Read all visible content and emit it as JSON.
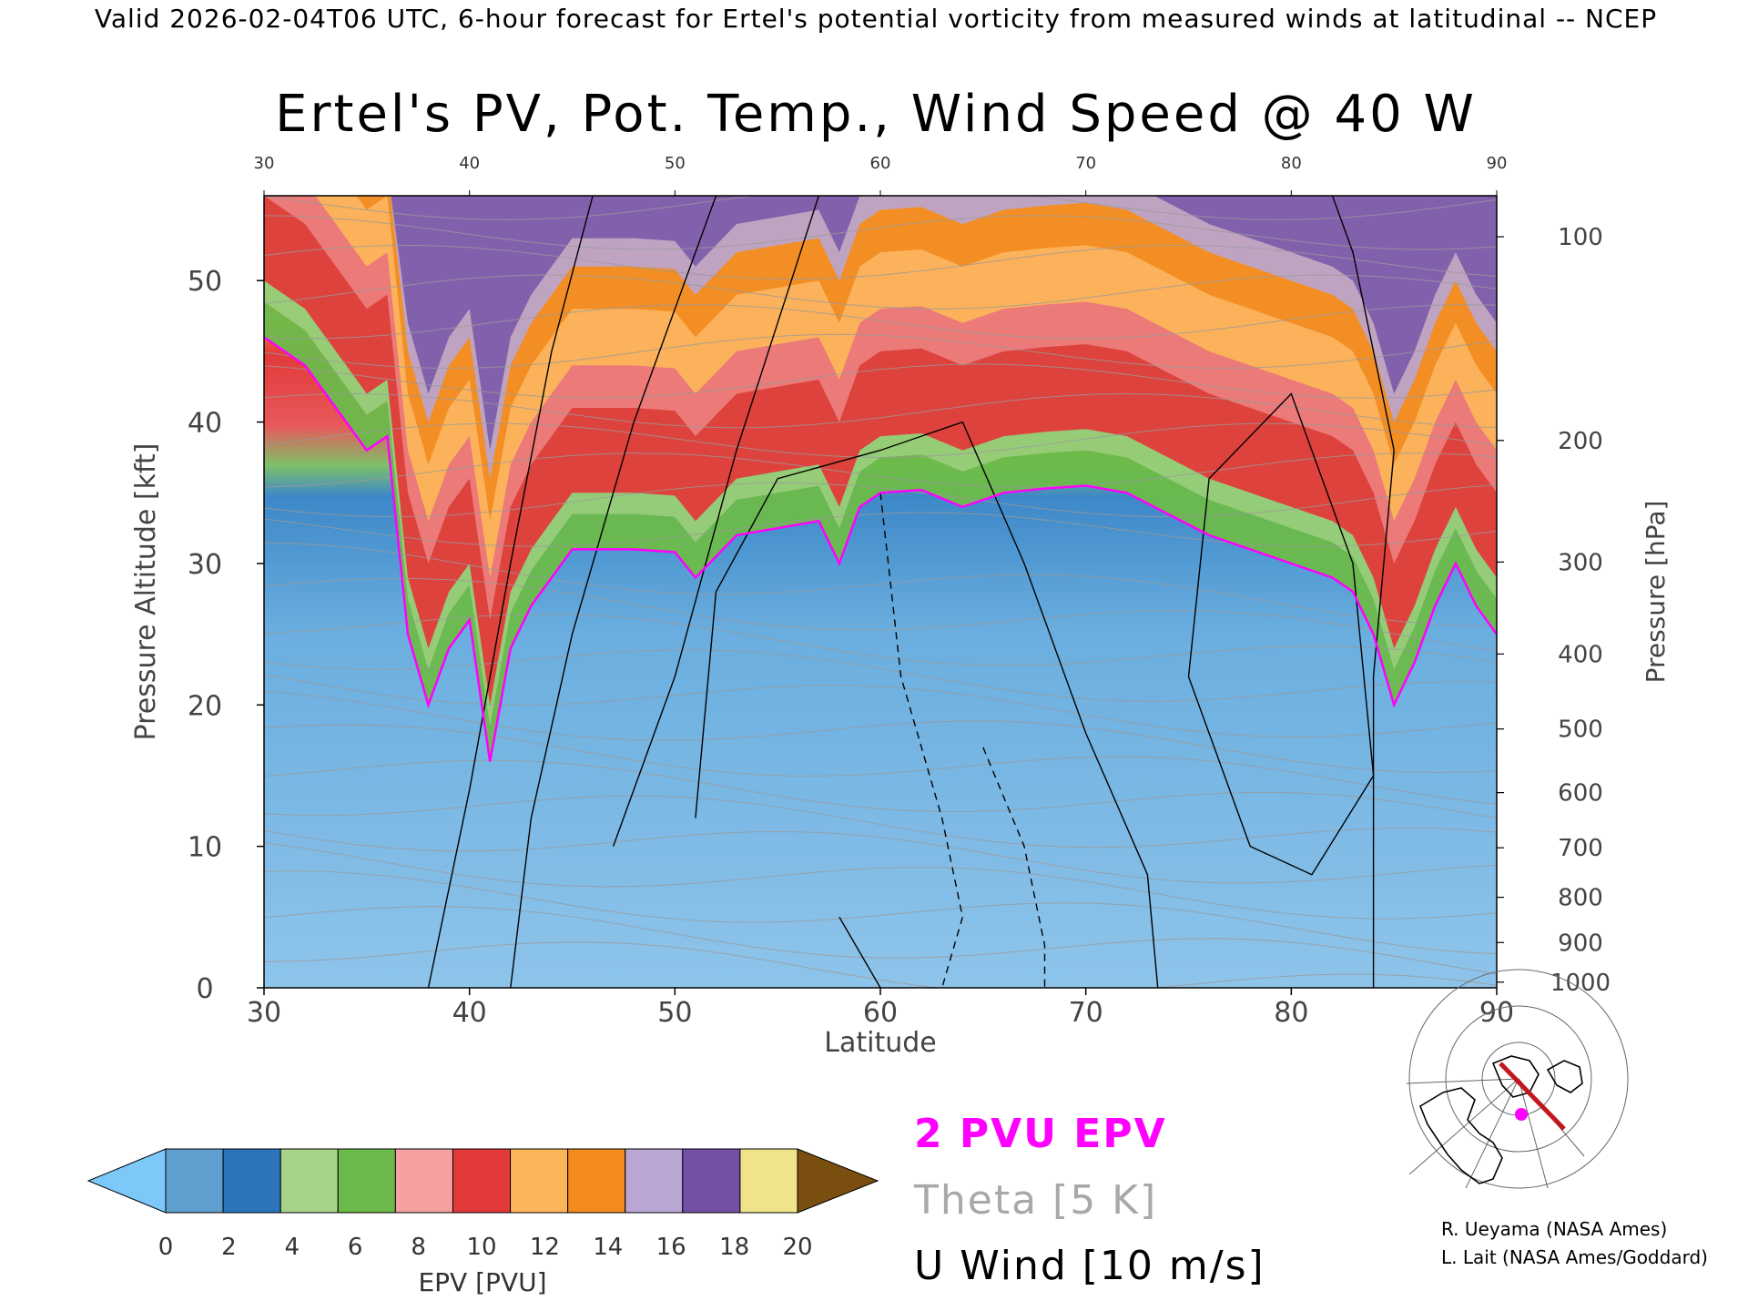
{
  "header": {
    "valid_line": "Valid 2026-02-04T06 UTC, 6-hour forecast for Ertel's potential vorticity from measured winds at latitudinal -- NCEP"
  },
  "chart_data": {
    "type": "heatmap",
    "title": "Ertel's PV, Pot. Temp., Wind Speed @ 40 W",
    "xlabel": "Latitude",
    "ylabel": "Pressure Altitude [kft]",
    "y2label": "Pressure [hPa]",
    "xlim": [
      30,
      90
    ],
    "ylim": [
      0,
      56
    ],
    "x_ticks": [
      "30",
      "40",
      "50",
      "60",
      "70",
      "80",
      "90"
    ],
    "x_top_ticks": [
      "30",
      "40",
      "50",
      "60",
      "70",
      "80",
      "90"
    ],
    "y_ticks": [
      "0",
      "10",
      "20",
      "30",
      "40",
      "50"
    ],
    "pressure_ticks": [
      {
        "label": "100",
        "kft": 53.1
      },
      {
        "label": "200",
        "kft": 38.7
      },
      {
        "label": "300",
        "kft": 30.1
      },
      {
        "label": "400",
        "kft": 23.6
      },
      {
        "label": "500",
        "kft": 18.3
      },
      {
        "label": "600",
        "kft": 13.8
      },
      {
        "label": "700",
        "kft": 9.9
      },
      {
        "label": "800",
        "kft": 6.4
      },
      {
        "label": "900",
        "kft": 3.2
      },
      {
        "label": "1000",
        "kft": 0.4
      }
    ],
    "tropopause_2pvu_kft": [
      [
        30,
        46
      ],
      [
        32,
        44
      ],
      [
        34,
        40
      ],
      [
        35,
        38
      ],
      [
        36,
        39
      ],
      [
        37,
        25
      ],
      [
        38,
        20
      ],
      [
        39,
        24
      ],
      [
        40,
        26
      ],
      [
        41,
        16
      ],
      [
        42,
        24
      ],
      [
        43,
        27
      ],
      [
        44,
        29
      ],
      [
        45,
        31
      ],
      [
        46,
        31
      ],
      [
        48,
        31
      ],
      [
        50,
        30.8
      ],
      [
        51,
        29
      ],
      [
        52,
        30.5
      ],
      [
        53,
        32
      ],
      [
        55,
        32.5
      ],
      [
        57,
        33
      ],
      [
        58,
        30
      ],
      [
        59,
        34
      ],
      [
        60,
        35
      ],
      [
        62,
        35.2
      ],
      [
        64,
        34
      ],
      [
        66,
        35
      ],
      [
        68,
        35.3
      ],
      [
        70,
        35.5
      ],
      [
        72,
        35
      ],
      [
        74,
        33.5
      ],
      [
        76,
        32
      ],
      [
        78,
        31
      ],
      [
        80,
        30
      ],
      [
        82,
        29
      ],
      [
        83,
        28
      ],
      [
        84,
        25
      ],
      [
        85,
        20
      ],
      [
        86,
        23
      ],
      [
        87,
        27
      ],
      [
        88,
        30
      ],
      [
        89,
        27
      ],
      [
        90,
        25
      ]
    ],
    "colorbar": {
      "label": "EPV [PVU]",
      "ticks": [
        "0",
        "2",
        "4",
        "6",
        "8",
        "10",
        "12",
        "14",
        "16",
        "18",
        "20"
      ],
      "colors": [
        "#5f9fd0",
        "#2a74b8",
        "#a8d48a",
        "#6cbb4a",
        "#f4a0a0",
        "#e23a3a",
        "#fdb55a",
        "#f28a1e",
        "#b9a6d3",
        "#7350a6",
        "#f0e48a"
      ],
      "under_color": "#7cc8f8",
      "over_color": "#7a4e0e"
    },
    "legend": [
      {
        "label": "2 PVU EPV",
        "color": "#ff00ff"
      },
      {
        "label": "Theta [5 K]",
        "color": "#a8a8a8"
      },
      {
        "label": "U Wind [10 m/s]",
        "color": "#000000"
      }
    ]
  },
  "credits": {
    "line1": "R. Ueyama (NASA Ames)",
    "line2": "L. Lait (NASA Ames/Goddard)"
  },
  "colors": {
    "trop_line": "#ff00ff",
    "map_track": "#c0181e",
    "map_dot": "#ff00ff"
  }
}
